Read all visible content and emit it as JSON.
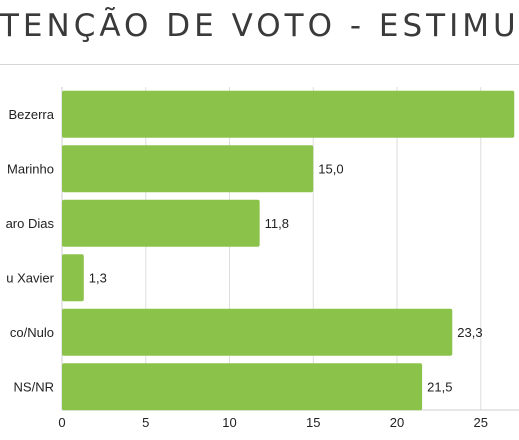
{
  "header": {
    "title": "TENÇÃO DE VOTO - ESTIMU"
  },
  "chart_data": {
    "type": "bar",
    "orientation": "horizontal",
    "categories": [
      "Bezerra",
      "Marinho",
      "aro Dias",
      "u Xavier",
      "co/Nulo",
      "NS/NR"
    ],
    "values": [
      27.0,
      15.0,
      11.8,
      1.3,
      23.3,
      21.5
    ],
    "data_labels": [
      "",
      "15,0",
      "11,8",
      "1,3",
      "23,3",
      "21,5"
    ],
    "xlim": [
      0,
      27
    ],
    "xticks": [
      0,
      5,
      10,
      15,
      20,
      25
    ],
    "xtick_labels": [
      "0",
      "5",
      "10",
      "15",
      "20",
      "25"
    ],
    "bar_color": "#8bc34a",
    "grid": true,
    "legend": "none"
  }
}
